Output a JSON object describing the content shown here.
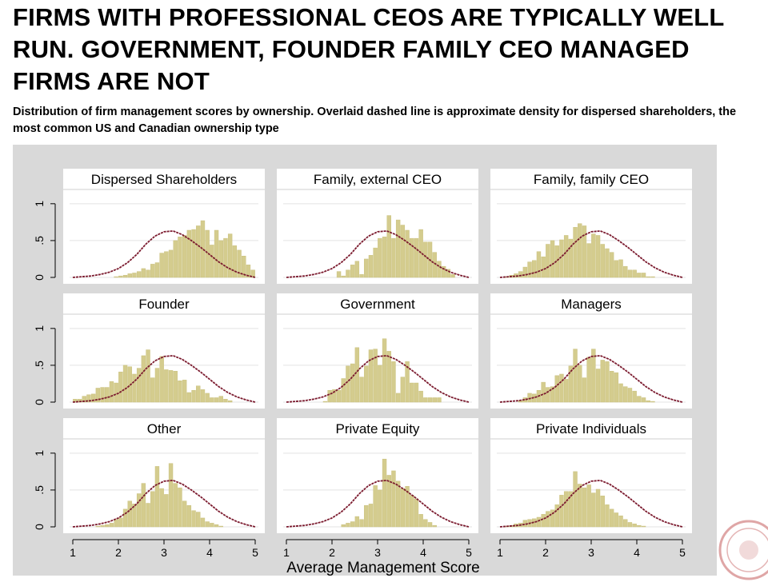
{
  "slide": {
    "headline": "FIRMS WITH PROFESSIONAL CEOS ARE TYPICALLY WELL RUN. GOVERNMENT, FOUNDER FAMILY CEO MANAGED FIRMS ARE NOT",
    "subtitle": "Distribution of firm management scores by ownership. Overlaid dashed line is approximate density for dispersed shareholders, the most common US and Canadian ownership type"
  },
  "colors": {
    "panel_bg": "#d9d9d9",
    "plot_bg": "#ffffff",
    "bar_fill": "#d4cc8e",
    "bar_stroke": "#c9c07e",
    "density_line": "#7b1a2e",
    "grid": "#e3e3e3"
  },
  "chart_data": {
    "type": "bar",
    "layout": "3x3 small multiples",
    "xlabel": "Average Management Score",
    "xlim": [
      1,
      5
    ],
    "ylim": [
      0,
      1
    ],
    "xticks": [
      "1",
      "2",
      "3",
      "4",
      "5"
    ],
    "yticks": [
      "0",
      ".5",
      "1"
    ],
    "density_line": {
      "x": [
        1.0,
        1.2,
        1.4,
        1.6,
        1.8,
        2.0,
        2.2,
        2.4,
        2.6,
        2.8,
        3.0,
        3.2,
        3.4,
        3.6,
        3.8,
        4.0,
        4.2,
        4.4,
        4.6,
        4.8,
        5.0
      ],
      "y": [
        0.0,
        0.01,
        0.02,
        0.04,
        0.07,
        0.12,
        0.2,
        0.31,
        0.45,
        0.56,
        0.62,
        0.63,
        0.58,
        0.5,
        0.41,
        0.31,
        0.21,
        0.13,
        0.07,
        0.03,
        0.0
      ]
    },
    "bin_start": 1.0,
    "bin_width": 0.1,
    "panels": [
      {
        "title": "Dispersed Shareholders",
        "values": [
          0,
          0,
          0,
          0,
          0,
          0,
          0,
          0,
          0,
          0.01,
          0.02,
          0.03,
          0.05,
          0.06,
          0.08,
          0.12,
          0.1,
          0.18,
          0.2,
          0.33,
          0.35,
          0.37,
          0.5,
          0.55,
          0.57,
          0.64,
          0.65,
          0.7,
          0.77,
          0.64,
          0.44,
          0.64,
          0.5,
          0.53,
          0.59,
          0.43,
          0.37,
          0.29,
          0.17,
          0.1
        ]
      },
      {
        "title": "Family, external CEO",
        "values": [
          0,
          0,
          0,
          0,
          0,
          0,
          0,
          0,
          0,
          0,
          0,
          0.08,
          0.02,
          0.1,
          0.17,
          0.22,
          0.04,
          0.25,
          0.3,
          0.4,
          0.53,
          0.55,
          0.84,
          0.53,
          0.78,
          0.71,
          0.64,
          0.53,
          0.53,
          0.65,
          0.48,
          0.48,
          0.34,
          0.22,
          0.15,
          0.11,
          0.04,
          0,
          0,
          0
        ]
      },
      {
        "title": "Family, family CEO",
        "values": [
          0,
          0.01,
          0.03,
          0.05,
          0.08,
          0.14,
          0.21,
          0.23,
          0.35,
          0.28,
          0.45,
          0.5,
          0.43,
          0.51,
          0.57,
          0.52,
          0.68,
          0.73,
          0.7,
          0.46,
          0.59,
          0.57,
          0.45,
          0.39,
          0.34,
          0.23,
          0.24,
          0.15,
          0.1,
          0.1,
          0.06,
          0.06,
          0.01,
          0.01,
          0,
          0,
          0,
          0,
          0,
          0
        ]
      },
      {
        "title": "Founder",
        "values": [
          0.04,
          0.04,
          0.08,
          0.1,
          0.11,
          0.19,
          0.2,
          0.2,
          0.28,
          0.26,
          0.41,
          0.5,
          0.48,
          0.38,
          0.46,
          0.63,
          0.71,
          0.33,
          0.46,
          0.62,
          0.44,
          0.43,
          0.42,
          0.29,
          0.3,
          0.13,
          0.16,
          0.22,
          0.17,
          0.12,
          0.06,
          0.06,
          0.08,
          0.04,
          0.02,
          0,
          0,
          0,
          0,
          0
        ]
      },
      {
        "title": "Government",
        "values": [
          0,
          0,
          0,
          0,
          0,
          0,
          0,
          0,
          0.01,
          0.16,
          0.17,
          0.16,
          0.32,
          0.49,
          0.52,
          0.74,
          0.34,
          0.49,
          0.71,
          0.72,
          0.5,
          0.86,
          0.69,
          0.55,
          0.12,
          0.34,
          0.55,
          0.26,
          0.26,
          0.15,
          0.06,
          0.06,
          0.06,
          0.06,
          0,
          0,
          0,
          0,
          0,
          0
        ]
      },
      {
        "title": "Managers",
        "values": [
          0,
          0,
          0,
          0,
          0.02,
          0.06,
          0.12,
          0.11,
          0.16,
          0.27,
          0.2,
          0.21,
          0.36,
          0.38,
          0.31,
          0.49,
          0.72,
          0.5,
          0.33,
          0.61,
          0.72,
          0.45,
          0.57,
          0.55,
          0.42,
          0.4,
          0.25,
          0.21,
          0.19,
          0.15,
          0.08,
          0.06,
          0.02,
          0.01,
          0,
          0,
          0,
          0,
          0,
          0
        ]
      },
      {
        "title": "Other",
        "values": [
          0,
          0,
          0,
          0,
          0,
          0.01,
          0.02,
          0.03,
          0.05,
          0.1,
          0.12,
          0.24,
          0.35,
          0.31,
          0.45,
          0.59,
          0.32,
          0.48,
          0.82,
          0.52,
          0.44,
          0.86,
          0.59,
          0.53,
          0.35,
          0.29,
          0.22,
          0.2,
          0.12,
          0.07,
          0.05,
          0.03,
          0.01,
          0,
          0,
          0,
          0,
          0,
          0,
          0
        ]
      },
      {
        "title": "Private Equity",
        "values": [
          0,
          0,
          0,
          0,
          0,
          0,
          0,
          0,
          0,
          0,
          0,
          0,
          0.03,
          0.05,
          0.07,
          0.14,
          0.1,
          0.29,
          0.31,
          0.56,
          0.5,
          0.92,
          0.7,
          0.76,
          0.62,
          0.52,
          0.55,
          0.43,
          0.38,
          0.17,
          0.1,
          0.06,
          0.02,
          0,
          0,
          0,
          0,
          0,
          0,
          0
        ]
      },
      {
        "title": "Private Individuals",
        "values": [
          0,
          0.01,
          0.02,
          0.04,
          0.05,
          0.09,
          0.1,
          0.11,
          0.13,
          0.17,
          0.21,
          0.23,
          0.3,
          0.43,
          0.48,
          0.48,
          0.75,
          0.58,
          0.53,
          0.57,
          0.46,
          0.51,
          0.42,
          0.3,
          0.24,
          0.19,
          0.15,
          0.1,
          0.06,
          0.04,
          0.02,
          0.01,
          0,
          0,
          0,
          0,
          0,
          0,
          0,
          0
        ]
      }
    ]
  }
}
